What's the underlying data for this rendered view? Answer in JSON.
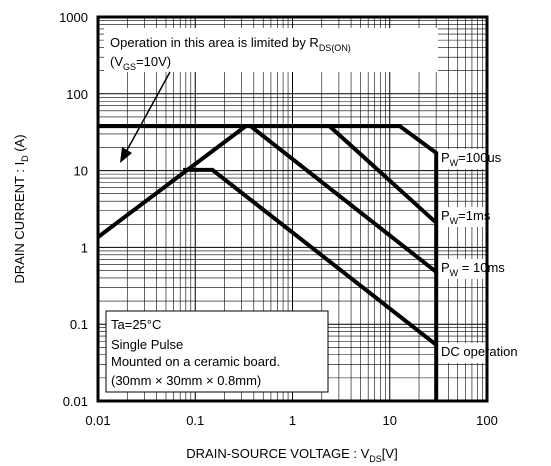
{
  "chart_data": {
    "type": "line",
    "xscale": "log",
    "yscale": "log",
    "xlim": [
      0.01,
      100
    ],
    "ylim": [
      0.01,
      1000
    ],
    "xticks": [
      0.01,
      0.1,
      1,
      10,
      100
    ],
    "yticks": [
      0.01,
      0.1,
      1,
      10,
      100,
      1000
    ],
    "grid": true,
    "minor_grid": true,
    "x_label": {
      "text": "DRAIN-SOURCE VOLTAGE : V",
      "sub": "DS",
      "tail": "[V]"
    },
    "y_label": {
      "text": "DRAIN CURRENT : I",
      "sub": "D",
      "tail": " (A)"
    },
    "series": [
      {
        "color": "#000000",
        "x": [
          0.01,
          12.7,
          30,
          30
        ],
        "values": [
          38,
          38,
          17,
          0.01
        ],
        "label": {
          "main": "P",
          "sub": "W",
          "tail": "=100us"
        }
      },
      {
        "color": "#000000",
        "x": [
          0.01,
          0.33
        ],
        "values": [
          1.36,
          38
        ]
      },
      {
        "color": "#000000",
        "x": [
          2.4,
          30
        ],
        "values": [
          38,
          2.1
        ],
        "label": {
          "main": "P",
          "sub": "W",
          "tail": "=1ms"
        }
      },
      {
        "color": "#000000",
        "x": [
          0.37,
          30
        ],
        "values": [
          38,
          0.48
        ],
        "label": {
          "main": "P",
          "sub": "W",
          "tail": " = 10ms"
        }
      },
      {
        "color": "#000000",
        "x": [
          0.075,
          0.15,
          30
        ],
        "values": [
          10.2,
          10.2,
          0.054
        ],
        "label": {
          "main": "DC operation"
        }
      }
    ],
    "limit_note": {
      "line1": "Operation in this area is limited by R",
      "line1_sub": "DS(ON)",
      "line2_open": "(V",
      "line2_sub": "GS",
      "line2_tail": "=10V)"
    },
    "conditions": [
      "Ta=25°C",
      "Single Pulse",
      "Mounted on a ceramic board.",
      "(30mm × 30mm × 0.8mm)"
    ]
  }
}
